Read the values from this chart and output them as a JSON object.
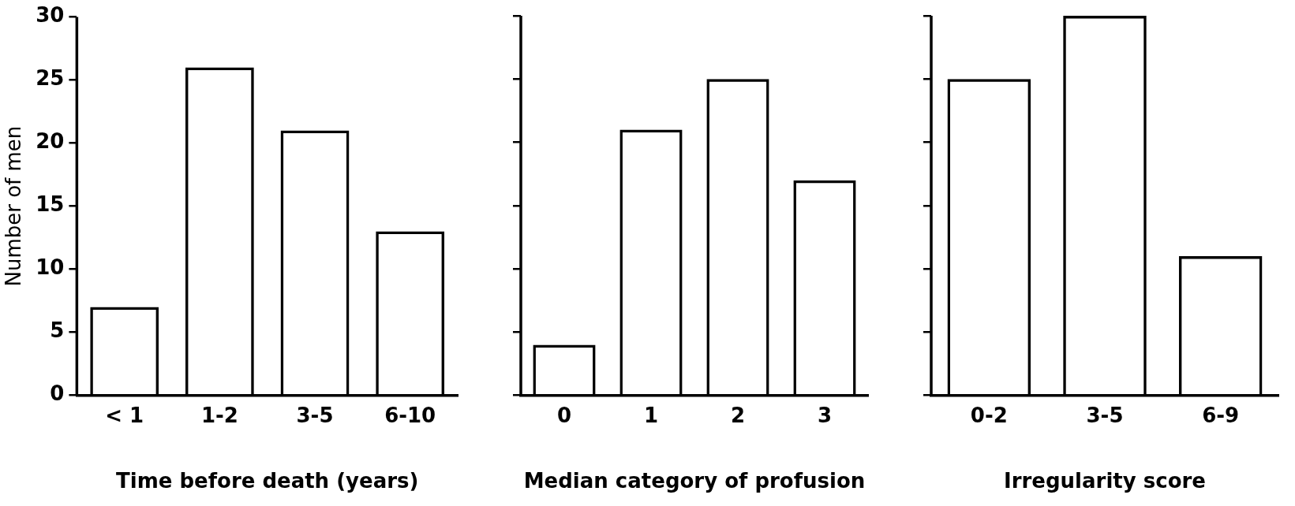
{
  "chart_data": [
    {
      "type": "bar",
      "categories": [
        "< 1",
        "1-2",
        "3-5",
        "6-10"
      ],
      "values": [
        7,
        26,
        21,
        13
      ],
      "color": "#000000",
      "xlabel": "Time before death (years)",
      "ylabel": "Number of men",
      "ylim": [
        0,
        30
      ],
      "yticks": [
        0,
        5,
        10,
        15,
        20,
        25,
        30
      ]
    },
    {
      "type": "bar",
      "categories": [
        "0",
        "1",
        "2",
        "3"
      ],
      "values": [
        4,
        21,
        25,
        17
      ],
      "color": "#000000",
      "xlabel": "Median category of profusion",
      "ylim": [
        0,
        30
      ],
      "yticks": [
        0,
        5,
        10,
        15,
        20,
        25,
        30
      ],
      "tick_labels": "x"
    },
    {
      "type": "bar",
      "categories": [
        "0-2",
        "3-5",
        "6-9"
      ],
      "values": [
        25,
        30,
        11
      ],
      "color": "#000000",
      "xlabel": "Irregularity score",
      "ylim": [
        0,
        30
      ],
      "yticks": [
        0,
        5,
        10,
        15,
        20,
        25,
        30
      ],
      "tick_labels": "x"
    }
  ]
}
